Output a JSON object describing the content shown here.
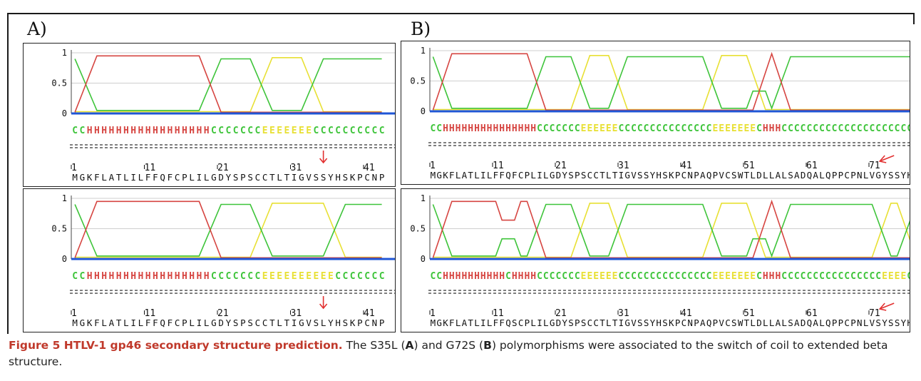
{
  "panel_labels": {
    "a": "A)",
    "b": "B)"
  },
  "colors": {
    "helix": "#d64541",
    "strand": "#e8e034",
    "coil": "#3ec43a",
    "baseline": "#1f56d6",
    "grid": "#cfcfcf",
    "arrow": "#e23030"
  },
  "panels": [
    {
      "id": "A-top",
      "y_ticks": [
        "1",
        "0.5",
        "0"
      ],
      "ss_string": "CCHHHHHHHHHHHHHHHHHCCCCCCCEEEEEEECCCCCCCCCC",
      "position_labels": [
        "1",
        "11",
        "21",
        "31",
        "41"
      ],
      "sequence": "MGKFLATLILFFQFCPLILGDYSPSCCTLTIGVSSYHSKPCNP",
      "arrow_position": 35
    },
    {
      "id": "A-bottom",
      "y_ticks": [
        "1",
        "0.5",
        "0"
      ],
      "ss_string": "CCHHHHHHHHHHHHHHHHHCCCCCCCEEEEEEEEEECCCCCCC",
      "position_labels": [
        "1",
        "11",
        "21",
        "31",
        "41"
      ],
      "sequence": "MGKFLATLILFFQFCPLILGDYSPSCCTLTIGVSLYHSKPCNP",
      "arrow_position": 35
    },
    {
      "id": "B-top",
      "y_ticks": [
        "1",
        "0.5",
        "0"
      ],
      "ss_string": "CCHHHHHHHHHHHHHHHCCCCCCCEEEEEECCCCCCCCCCCCCCCEEEEEEECHHHCCCCCCCCCCCCCCCCCCCCCC",
      "position_labels": [
        "1",
        "11",
        "21",
        "31",
        "41",
        "51",
        "61",
        "71"
      ],
      "sequence": "MGKFLATLILFFQFCPLILGDYSPSCCTLTIGVSSYHSKPCNPAQPVCSWTLDLLALSADQALQPPCPNLVGYSSYHSKP",
      "arrow_position": 72
    },
    {
      "id": "B-bottom",
      "y_ticks": [
        "1",
        "0.5",
        "0"
      ],
      "ss_string": "CCHHHHHHHHHHCHHHHCCCCCCCEEEEEECCCCCCCCCCCCCCCEEEEEEECHHHCCCCCCCCCCCCCCCCEEEECCCC",
      "position_labels": [
        "1",
        "11",
        "21",
        "31",
        "41",
        "51",
        "61",
        "71"
      ],
      "sequence": "MGKFLATLILFFQSCPLILGDYSPSCCTLTIGVSSYHSKPCNPAQPVCSWTLDLLALSADQALQPPCPNLVSYSSYHSKP",
      "arrow_position": 72
    }
  ],
  "caption": {
    "bold": "Figure 5 HTLV-1 gp46 secondary structure prediction.",
    "text_1": " The S35L (",
    "ref_a": "A",
    "text_2": ") and G72S (",
    "ref_b": "B",
    "text_3": ") polymorphisms were associated to the switch of coil to extended beta structure."
  }
}
